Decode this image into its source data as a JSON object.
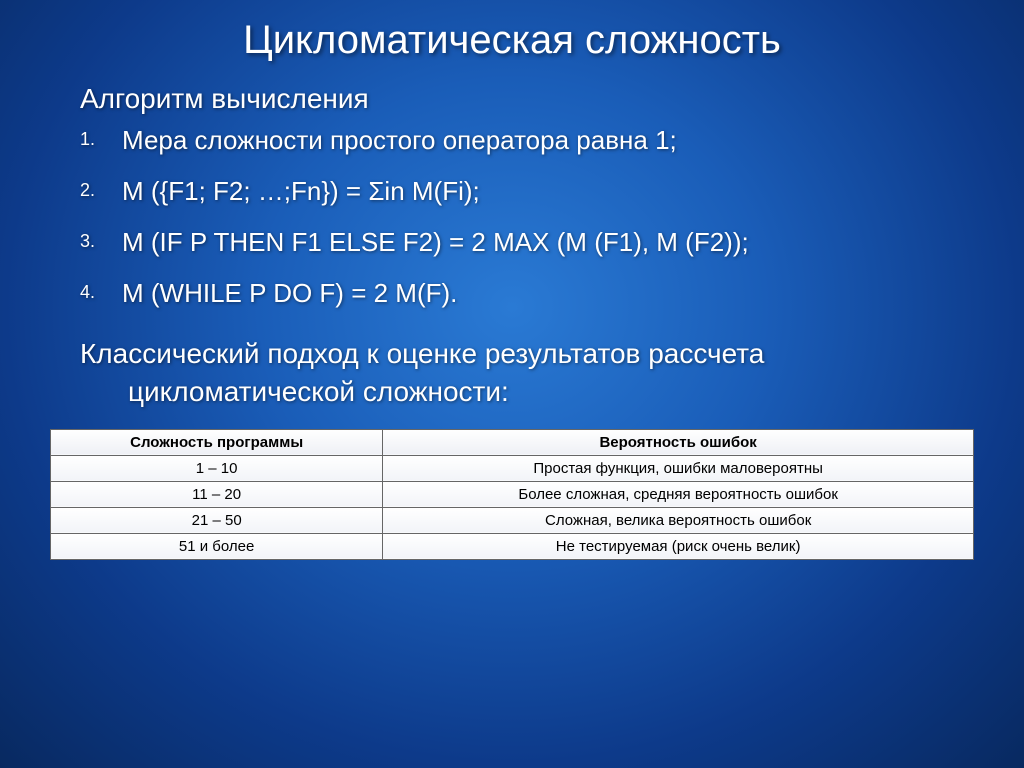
{
  "colors": {
    "background_gradient": [
      "#2a7ad4",
      "#1a5db8",
      "#0d3a8a",
      "#082960"
    ],
    "text": "#ffffff",
    "table_text": "#000000",
    "table_border": "#666666",
    "table_fill": "#ffffff"
  },
  "title": "Цикломатическая сложность",
  "subtitle": "Алгоритм вычисления",
  "list_items": [
    {
      "num": "1.",
      "text": "Мера сложности простого оператора равна 1;"
    },
    {
      "num": "2.",
      "text": "M ({F1; F2; …;Fn}) = Σin M(Fi);"
    },
    {
      "num": "3.",
      "text": "M (IF P THEN F1 ELSE F2) = 2 MAX (M (F1), M (F2));"
    },
    {
      "num": "4.",
      "text": "M (WHILE P DO F) = 2 M(F)."
    }
  ],
  "paragraph_line1": "Классический подход к оценке результатов рассчета",
  "paragraph_line2": "цикломатической сложности:",
  "table": {
    "headers": [
      "Сложность программы",
      "Вероятность ошибок"
    ],
    "rows": [
      [
        "1 – 10",
        "Простая функция, ошибки маловероятны"
      ],
      [
        "11 – 20",
        "Более сложная, средняя вероятность ошибок"
      ],
      [
        "21 – 50",
        "Сложная, велика вероятность ошибок"
      ],
      [
        "51 и более",
        "Не тестируемая (риск очень велик)"
      ]
    ],
    "col1_width_pct": 36,
    "font_size_pt": 11
  },
  "typography": {
    "title_fontsize": 40,
    "subtitle_fontsize": 28,
    "list_fontsize": 26,
    "list_num_fontsize": 18,
    "paragraph_fontsize": 28
  }
}
